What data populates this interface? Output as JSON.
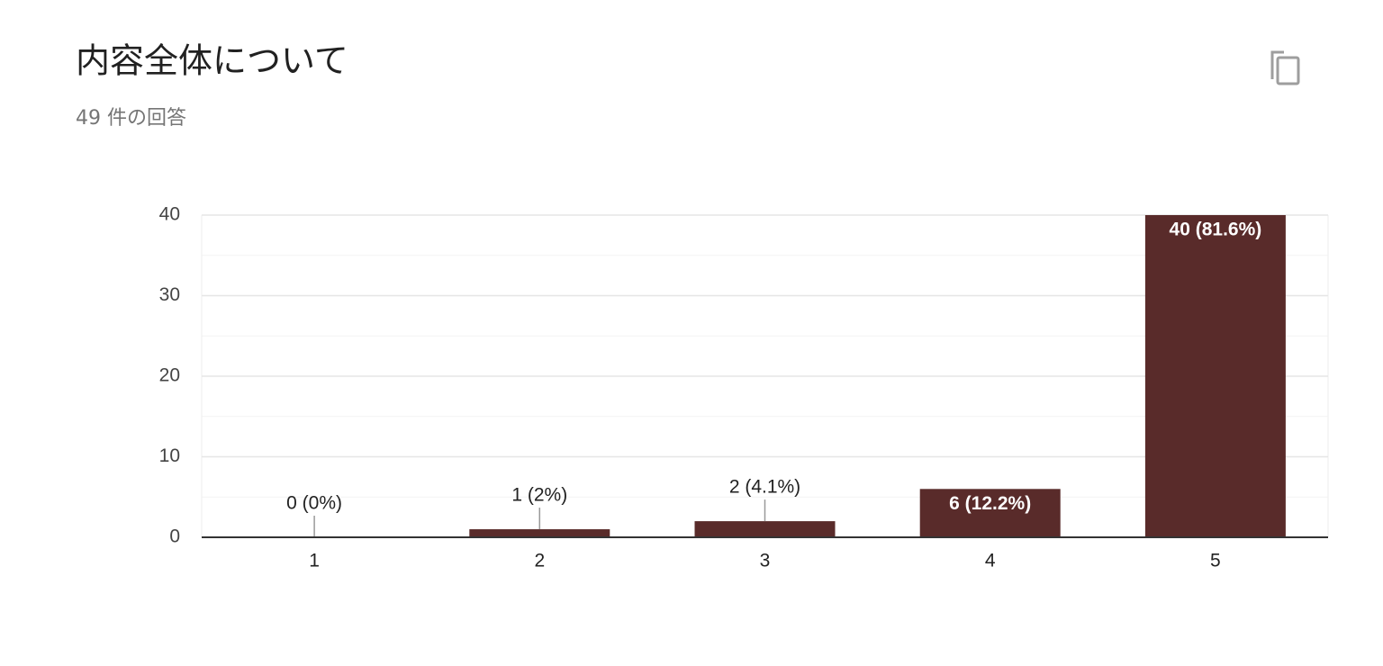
{
  "chart_data": {
    "type": "bar",
    "title": "内容全体について",
    "subtitle": "49 件の回答",
    "categories": [
      "1",
      "2",
      "3",
      "4",
      "5"
    ],
    "values": [
      0,
      1,
      2,
      6,
      40
    ],
    "value_labels": [
      "0 (0%)",
      "1 (2%)",
      "2 (4.1%)",
      "6 (12.2%)",
      "40 (81.6%)"
    ],
    "color": "#592b2a",
    "ylim": [
      0,
      40
    ],
    "yticks": [
      0,
      10,
      20,
      30,
      40
    ],
    "minor_yticks": [
      5,
      15,
      25,
      35
    ],
    "grid": true
  }
}
